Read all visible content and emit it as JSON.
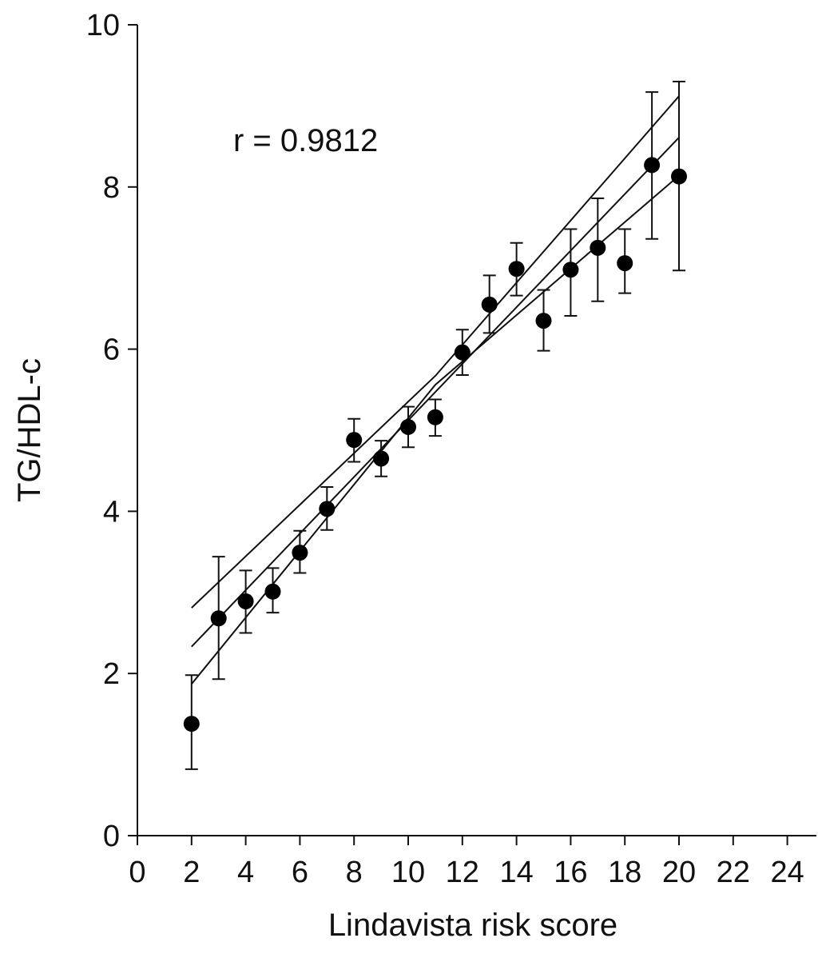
{
  "chart_data": {
    "type": "scatter",
    "title": "",
    "xlabel": "Lindavista risk score",
    "ylabel": "TG/HDL-c",
    "annotation": "r = 0.9812",
    "xlim": [
      0,
      24
    ],
    "ylim": [
      0,
      10
    ],
    "x_ticks": [
      "0",
      "2",
      "4",
      "6",
      "8",
      "10",
      "12",
      "14",
      "16",
      "18",
      "20",
      "22",
      "24"
    ],
    "y_ticks": [
      "0",
      "2",
      "4",
      "6",
      "8",
      "10"
    ],
    "grid": false,
    "legend": "none",
    "points": [
      {
        "x": 2,
        "y": 1.38,
        "err_low": 0.82,
        "err_high": 1.98
      },
      {
        "x": 3,
        "y": 2.68,
        "err_low": 1.93,
        "err_high": 3.44
      },
      {
        "x": 4,
        "y": 2.89,
        "err_low": 2.5,
        "err_high": 3.27
      },
      {
        "x": 5,
        "y": 3.01,
        "err_low": 2.75,
        "err_high": 3.3
      },
      {
        "x": 6,
        "y": 3.49,
        "err_low": 3.24,
        "err_high": 3.76
      },
      {
        "x": 7,
        "y": 4.03,
        "err_low": 3.77,
        "err_high": 4.3
      },
      {
        "x": 8,
        "y": 4.88,
        "err_low": 4.61,
        "err_high": 5.14
      },
      {
        "x": 9,
        "y": 4.65,
        "err_low": 4.43,
        "err_high": 4.87
      },
      {
        "x": 10,
        "y": 5.04,
        "err_low": 4.79,
        "err_high": 5.29
      },
      {
        "x": 11,
        "y": 5.16,
        "err_low": 4.93,
        "err_high": 5.38
      },
      {
        "x": 12,
        "y": 5.96,
        "err_low": 5.68,
        "err_high": 6.24
      },
      {
        "x": 13,
        "y": 6.55,
        "err_low": 6.2,
        "err_high": 6.91
      },
      {
        "x": 14,
        "y": 6.99,
        "err_low": 6.66,
        "err_high": 7.31
      },
      {
        "x": 15,
        "y": 6.35,
        "err_low": 5.98,
        "err_high": 6.73
      },
      {
        "x": 16,
        "y": 6.98,
        "err_low": 6.41,
        "err_high": 7.48
      },
      {
        "x": 17,
        "y": 7.25,
        "err_low": 6.59,
        "err_high": 7.86
      },
      {
        "x": 18,
        "y": 7.06,
        "err_low": 6.69,
        "err_high": 7.48
      },
      {
        "x": 19,
        "y": 8.27,
        "err_low": 7.36,
        "err_high": 9.17
      },
      {
        "x": 20,
        "y": 8.13,
        "err_low": 6.97,
        "err_high": 9.3
      }
    ],
    "regression_lines": [
      {
        "x1": 2,
        "y1": 2.33,
        "x2": 20,
        "y2": 8.61
      },
      {
        "x1": 2,
        "y1": 2.81,
        "x1b": 11,
        "y1b": 5.67,
        "x2": 20,
        "y2": 9.12
      },
      {
        "x1": 2,
        "y1": 1.87,
        "x1b": 11,
        "y1b": 5.56,
        "x2": 20,
        "y2": 8.14
      }
    ]
  }
}
